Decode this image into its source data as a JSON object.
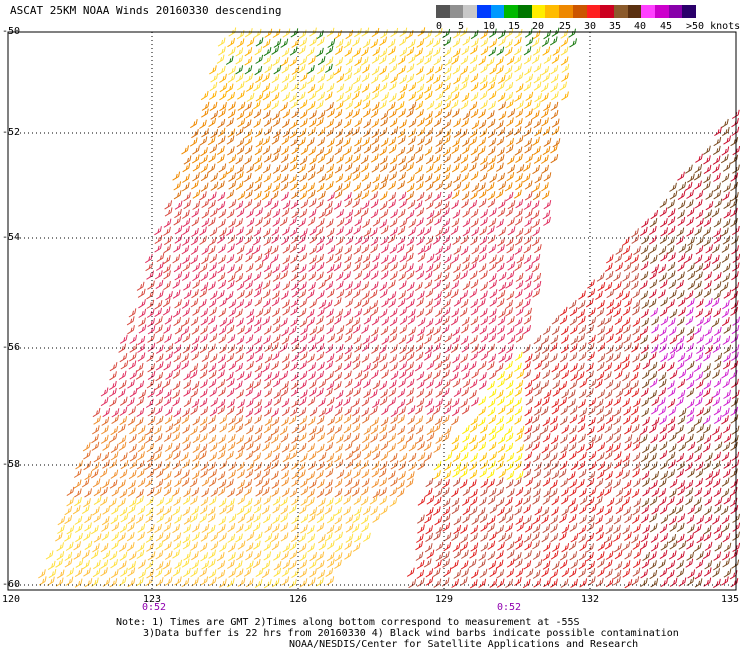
{
  "header": {
    "title": "ASCAT 25KM NOAA Winds 20160330 descending"
  },
  "legend": {
    "labels": [
      "0",
      "5",
      "10",
      "15",
      "20",
      "25",
      "30",
      "35",
      "40",
      "45",
      ">50 knots"
    ],
    "colors": [
      "#555555",
      "#909090",
      "#c8c8c8",
      "#003cff",
      "#0099ff",
      "#00b800",
      "#007700",
      "#ffee00",
      "#ffbb00",
      "#ee8800",
      "#cc5500",
      "#ff2020",
      "#cc0020",
      "#8b5a2b",
      "#5a3010",
      "#ff40ff",
      "#cc00cc",
      "#8800aa",
      "#2a006a"
    ]
  },
  "axes": {
    "lat_labels": [
      "-50",
      "-52",
      "-54",
      "-56",
      "-58",
      "-60"
    ],
    "lon_labels": [
      "120",
      "123",
      "126",
      "129",
      "132",
      "135"
    ]
  },
  "times": [
    "0:52",
    "0:52"
  ],
  "notes": [
    "Note: 1) Times are GMT 2)Times along bottom correspond to measurement at -55S",
    "3)Data buffer is 22 hrs from 20160330 4) Black wind barbs indicate possible contamination",
    "NOAA/NESDIS/Center for Satellite Applications and Research"
  ]
}
